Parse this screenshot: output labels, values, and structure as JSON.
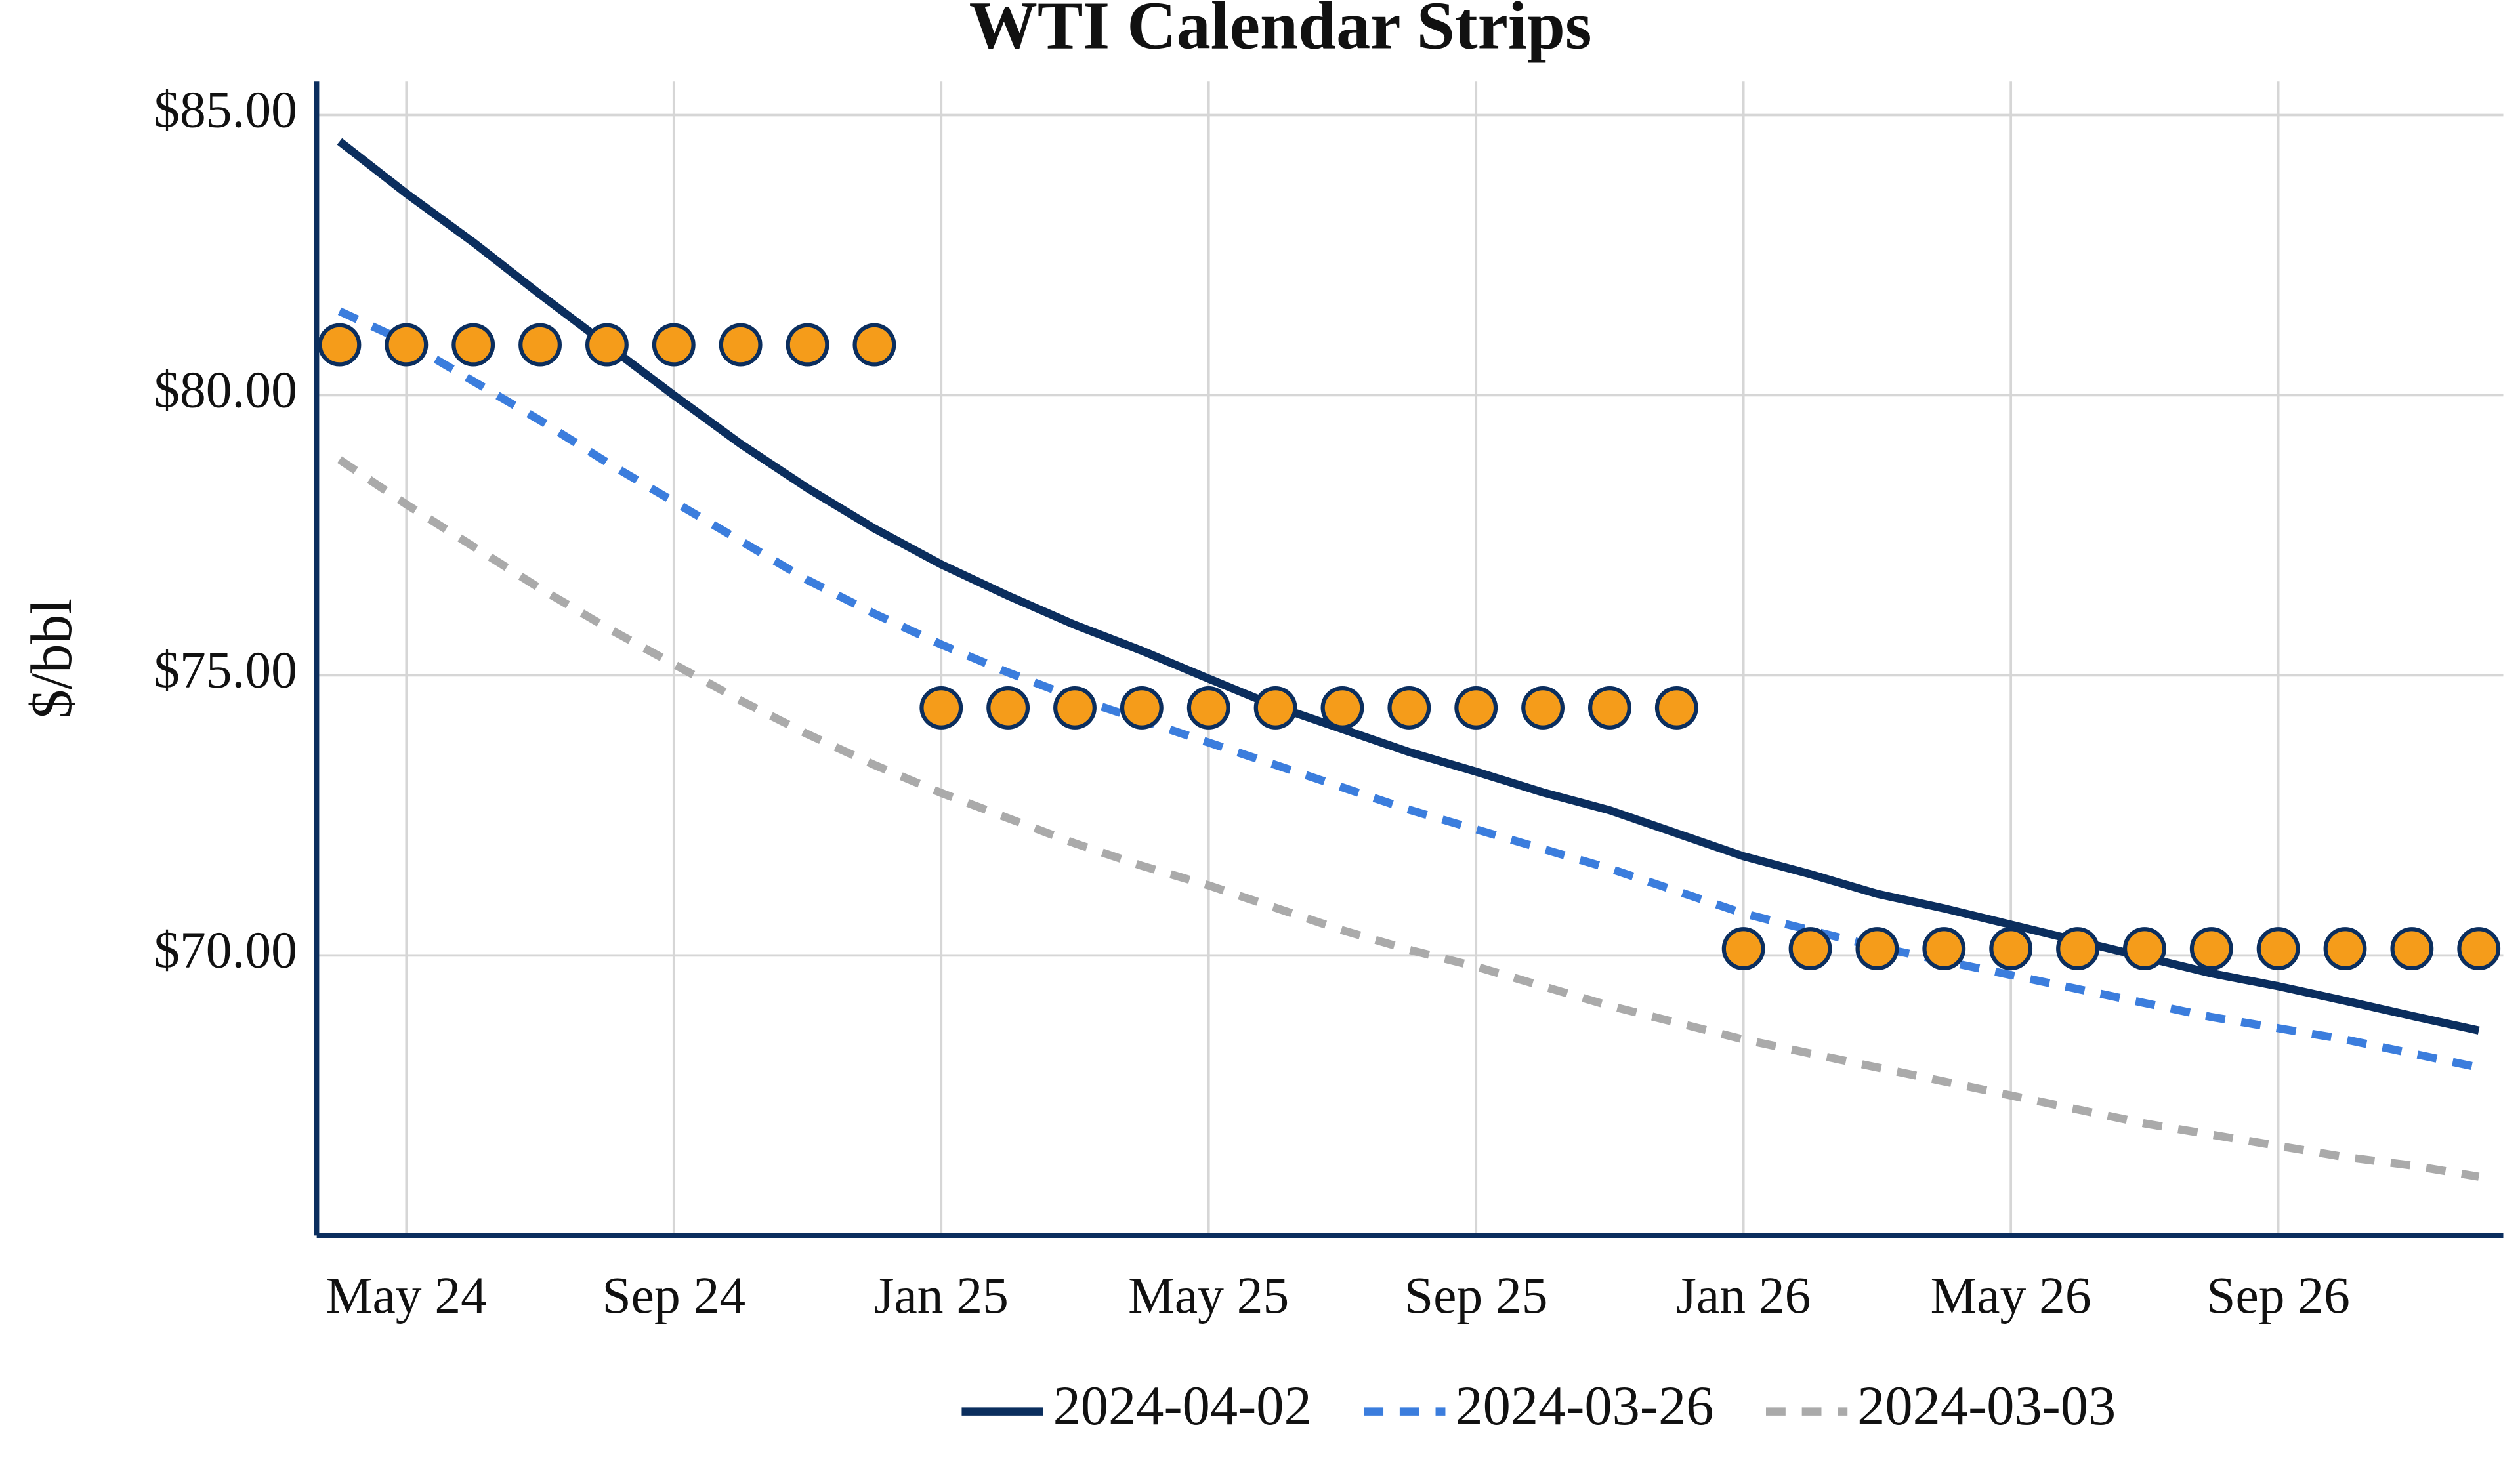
{
  "chart_data": {
    "type": "line",
    "title": "WTI Calendar Strips",
    "y_label": "$/bbl",
    "x": [
      "2024-04",
      "2024-05",
      "2024-06",
      "2024-07",
      "2024-08",
      "2024-09",
      "2024-10",
      "2024-11",
      "2024-12",
      "2025-01",
      "2025-02",
      "2025-03",
      "2025-04",
      "2025-05",
      "2025-06",
      "2025-07",
      "2025-08",
      "2025-09",
      "2025-10",
      "2025-11",
      "2025-12",
      "2026-01",
      "2026-02",
      "2026-03",
      "2026-04",
      "2026-05",
      "2026-06",
      "2026-07",
      "2026-08",
      "2026-09",
      "2026-10",
      "2026-11",
      "2026-12"
    ],
    "series": [
      {
        "name": "2024-04-02",
        "color": "#0b2e5e",
        "dash": "solid",
        "values": [
          84.53,
          83.6,
          82.73,
          81.8,
          80.9,
          80.0,
          79.13,
          78.34,
          77.62,
          76.98,
          76.42,
          75.9,
          75.44,
          74.94,
          74.45,
          74.04,
          73.63,
          73.28,
          72.91,
          72.59,
          72.18,
          71.77,
          71.45,
          71.1,
          70.84,
          70.55,
          70.26,
          69.97,
          69.68,
          69.45,
          69.19,
          68.92,
          68.66
        ]
      },
      {
        "name": "2024-03-26",
        "color": "#3b7ddd",
        "dash": "dashed",
        "values": [
          81.5,
          80.95,
          80.25,
          79.55,
          78.8,
          78.1,
          77.4,
          76.7,
          76.1,
          75.55,
          75.05,
          74.6,
          74.2,
          73.8,
          73.4,
          73.0,
          72.6,
          72.25,
          71.9,
          71.55,
          71.15,
          70.75,
          70.45,
          70.15,
          69.9,
          69.65,
          69.4,
          69.15,
          68.9,
          68.7,
          68.5,
          68.25,
          68.0
        ]
      },
      {
        "name": "2024-03-03",
        "color": "#aaaaaa",
        "dash": "dashed",
        "values": [
          78.85,
          78.05,
          77.3,
          76.55,
          75.85,
          75.2,
          74.55,
          73.95,
          73.4,
          72.9,
          72.45,
          72.0,
          71.6,
          71.25,
          70.85,
          70.45,
          70.1,
          69.8,
          69.45,
          69.1,
          68.8,
          68.5,
          68.25,
          68.0,
          67.75,
          67.5,
          67.25,
          67.0,
          66.8,
          66.6,
          66.4,
          66.25,
          66.05
        ]
      },
      {
        "color": "#f59c1a",
        "edge_color": "#0b2e5e",
        "dash": "none",
        "marker": "circle",
        "values": [
          80.9,
          80.9,
          80.9,
          80.9,
          80.9,
          80.9,
          80.9,
          80.9,
          80.9,
          74.42,
          74.42,
          74.42,
          74.42,
          74.42,
          74.42,
          74.42,
          74.42,
          74.42,
          74.42,
          74.42,
          74.42,
          70.12,
          70.12,
          70.12,
          70.12,
          70.12,
          70.12,
          70.12,
          70.12,
          70.12,
          70.12,
          70.12,
          70.12
        ]
      }
    ],
    "xticks": [
      {
        "value": "2024-05",
        "label": "May 24"
      },
      {
        "value": "2024-09",
        "label": "Sep 24"
      },
      {
        "value": "2025-01",
        "label": "Jan 25"
      },
      {
        "value": "2025-05",
        "label": "May 25"
      },
      {
        "value": "2025-09",
        "label": "Sep 25"
      },
      {
        "value": "2026-01",
        "label": "Jan 26"
      },
      {
        "value": "2026-05",
        "label": "May 26"
      },
      {
        "value": "2026-09",
        "label": "Sep 26"
      }
    ],
    "ylim": [
      65,
      85.6
    ],
    "yticks": [
      {
        "value": 70,
        "label": "$70.00"
      },
      {
        "value": 75,
        "label": "$75.00"
      },
      {
        "value": 80,
        "label": "$80.00"
      },
      {
        "value": 85,
        "label": "$85.00"
      }
    ],
    "grid": true,
    "legend": "bottom"
  }
}
